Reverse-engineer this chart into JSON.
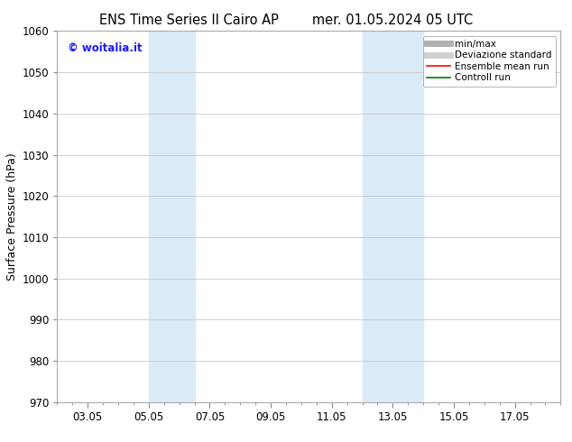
{
  "title_left": "ENS Time Series Il Cairo AP",
  "title_right": "mer. 01.05.2024 05 UTC",
  "ylabel": "Surface Pressure (hPa)",
  "ylim": [
    970,
    1060
  ],
  "yticks": [
    970,
    980,
    990,
    1000,
    1010,
    1020,
    1030,
    1040,
    1050,
    1060
  ],
  "xlim": [
    1.0,
    17.5
  ],
  "xtick_labels": [
    "03.05",
    "05.05",
    "07.05",
    "09.05",
    "11.05",
    "13.05",
    "15.05",
    "17.05"
  ],
  "xtick_positions": [
    2,
    4,
    6,
    8,
    10,
    12,
    14,
    16
  ],
  "shaded_bands": [
    {
      "x_start": 4.0,
      "x_end": 5.5,
      "color": "#daeaf7"
    },
    {
      "x_start": 11.0,
      "x_end": 13.0,
      "color": "#daeaf7"
    }
  ],
  "watermark": "© woitalia.it",
  "watermark_color": "#1a1aff",
  "legend_items": [
    {
      "label": "min/max",
      "color": "#b0b0b0",
      "linewidth": 5
    },
    {
      "label": "Deviazione standard",
      "color": "#d0d0d0",
      "linewidth": 5
    },
    {
      "label": "Ensemble mean run",
      "color": "#ff0000",
      "linewidth": 1.2
    },
    {
      "label": "Controll run",
      "color": "#007700",
      "linewidth": 1.2
    }
  ],
  "background_color": "#ffffff",
  "grid_color": "#c8c8c8",
  "title_fontsize": 10.5,
  "axis_label_fontsize": 9,
  "tick_fontsize": 8.5,
  "watermark_fontsize": 8.5,
  "legend_fontsize": 7.5
}
